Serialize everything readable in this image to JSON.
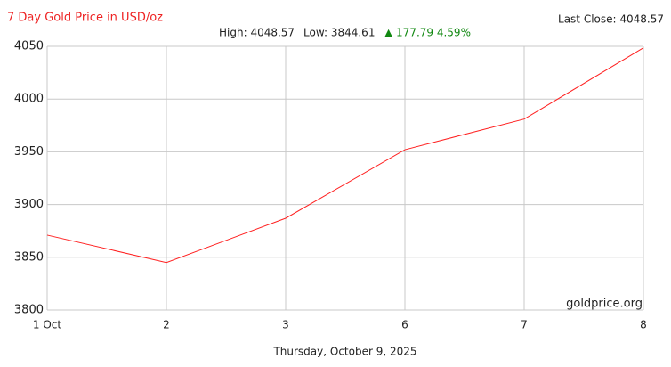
{
  "chart_data": {
    "type": "line",
    "title": "7 Day Gold Price in USD/oz",
    "last_close": "Last Close: 4048.57",
    "stats": [
      "High: 4048.57",
      "Low: 3844.61"
    ],
    "change": "▲ 177.79 4.59%",
    "watermark": "goldprice.org",
    "xlabel": "Thursday, October 9, 2025",
    "categories": [
      "1 Oct",
      "2",
      "3",
      "6",
      "7",
      "8"
    ],
    "series": [
      {
        "name": "Gold",
        "color": "#ff2020",
        "values": [
          3871,
          3845,
          3887,
          3952,
          3981,
          4048.57
        ]
      }
    ],
    "ylim": [
      3800,
      4050
    ],
    "yticks": [
      3800,
      3850,
      3900,
      3950,
      4000,
      4050
    ],
    "grid": true
  }
}
